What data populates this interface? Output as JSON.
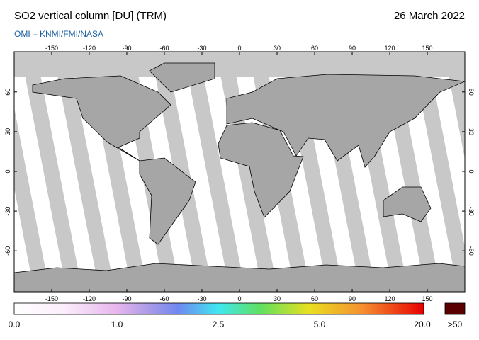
{
  "header": {
    "title": "SO2 vertical column [DU] (TRM)",
    "date": "26 March 2022",
    "credit": "OMI  –  KNMI/FMI/NASA"
  },
  "map": {
    "lon_ticks": [
      -150,
      -120,
      -90,
      -60,
      -30,
      0,
      30,
      60,
      90,
      120,
      150
    ],
    "lat_ticks": [
      60,
      30,
      0,
      -30,
      -60
    ]
  },
  "colorbar": {
    "labels": [
      "0.0",
      "1.0",
      "2.5",
      "5.0",
      "20.0"
    ],
    "overflow_label": ">50"
  }
}
